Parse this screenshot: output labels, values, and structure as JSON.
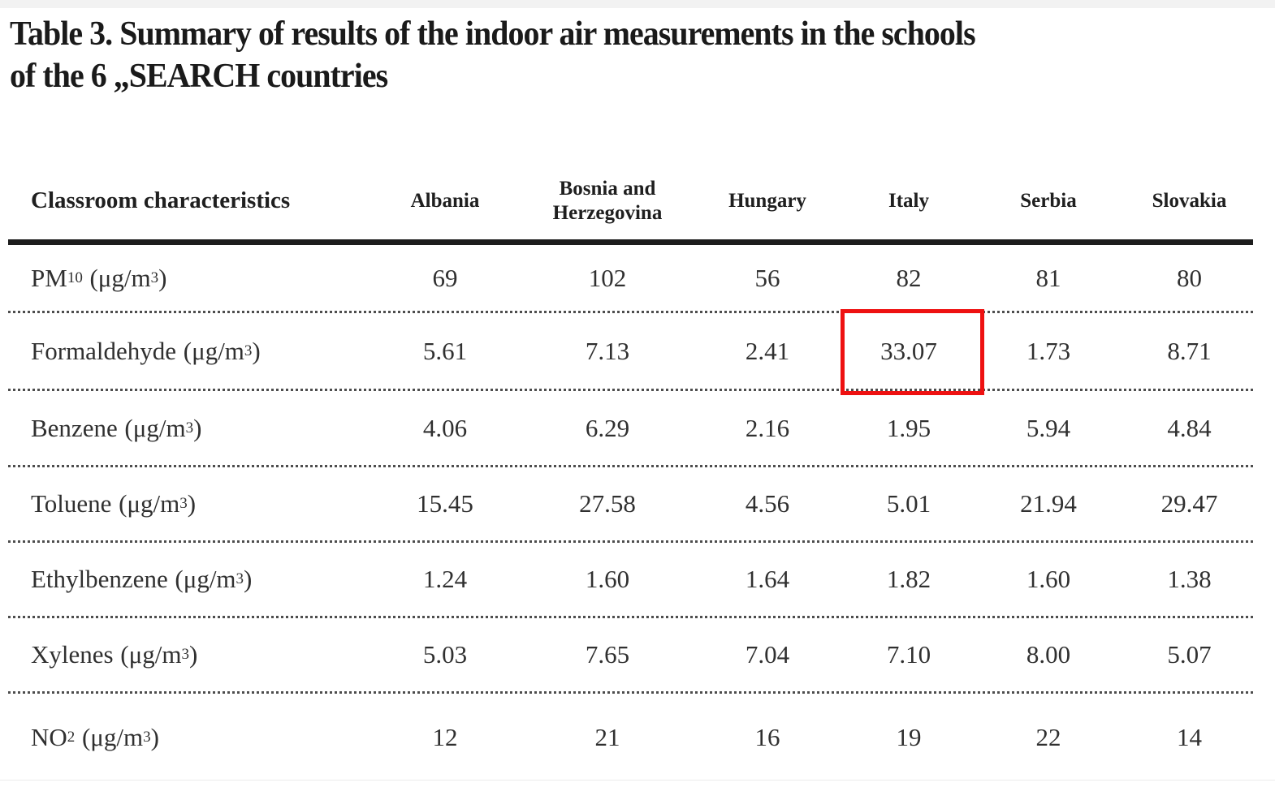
{
  "title": {
    "line1": "Table 3. Summary of results of the indoor air measurements in the schools",
    "line2": "of the 6 „SEARCH countries"
  },
  "table": {
    "header": {
      "label": "Classroom characteristics",
      "countries": [
        "Albania",
        "Bosnia and Herzegovina",
        "Hungary",
        "Italy",
        "Serbia",
        "Slovakia"
      ]
    },
    "rows": [
      {
        "chem": "PM",
        "chem_sub": "10",
        "unit_open": "(μg/m",
        "unit_sup": "3",
        "unit_close": ")",
        "values": [
          "69",
          "102",
          "56",
          "82",
          "81",
          "80"
        ]
      },
      {
        "chem": "Formaldehyde",
        "chem_sub": "",
        "unit_open": "(μg/m",
        "unit_sup": "3",
        "unit_close": ")",
        "values": [
          "5.61",
          "7.13",
          "2.41",
          "33.07",
          "1.73",
          "8.71"
        ]
      },
      {
        "chem": "Benzene",
        "chem_sub": "",
        "unit_open": "(μg/m",
        "unit_sup": "3",
        "unit_close": ")",
        "values": [
          "4.06",
          "6.29",
          "2.16",
          "1.95",
          "5.94",
          "4.84"
        ]
      },
      {
        "chem": "Toluene",
        "chem_sub": "",
        "unit_open": "(μg/m",
        "unit_sup": "3",
        "unit_close": ")",
        "values": [
          "15.45",
          "27.58",
          "4.56",
          "5.01",
          "21.94",
          "29.47"
        ]
      },
      {
        "chem": "Ethylbenzene",
        "chem_sub": "",
        "unit_open": "(μg/m",
        "unit_sup": "3",
        "unit_close": ")",
        "values": [
          "1.24",
          "1.60",
          "1.64",
          "1.82",
          "1.60",
          "1.38"
        ]
      },
      {
        "chem": "Xylenes",
        "chem_sub": "",
        "unit_open": "(μg/m",
        "unit_sup": "3",
        "unit_close": ")",
        "values": [
          "5.03",
          "7.65",
          "7.04",
          "7.10",
          "8.00",
          "5.07"
        ]
      },
      {
        "chem": "NO",
        "chem_sub": "2",
        "unit_open": "(μg/m",
        "unit_sup": "3",
        "unit_close": ")",
        "values": [
          "12",
          "21",
          "16",
          "19",
          "22",
          "14"
        ]
      }
    ],
    "highlight": {
      "row_label": "Formaldehyde",
      "country": "Italy",
      "value": "33.07",
      "color": "#ee1111"
    }
  },
  "colors": {
    "rule": "#1d1d1d",
    "text": "#2f2f2f",
    "highlight_red": "#ee1111"
  }
}
